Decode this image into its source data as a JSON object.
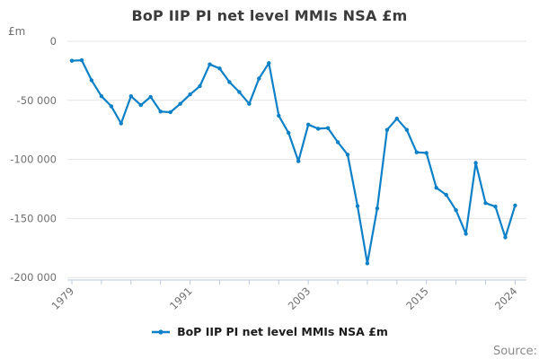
{
  "chart": {
    "title": "BoP IIP PI net level MMIs NSA £m",
    "unit_label": "£m",
    "legend_label": "BoP IIP PI net level MMIs NSA £m",
    "source_label": "Source:"
  },
  "chart_data": {
    "type": "line",
    "title": "BoP IIP PI net level MMIs NSA £m",
    "xlabel": "",
    "ylabel": "£m",
    "series_name": "BoP IIP PI net level MMIs NSA £m",
    "legend_position": "bottom",
    "grid": "horizontal",
    "ylim": [
      -200000,
      0
    ],
    "x": [
      1979,
      1980,
      1981,
      1982,
      1983,
      1984,
      1985,
      1986,
      1987,
      1988,
      1989,
      1990,
      1991,
      1992,
      1993,
      1994,
      1995,
      1996,
      1997,
      1998,
      1999,
      2000,
      2001,
      2002,
      2003,
      2004,
      2005,
      2006,
      2007,
      2008,
      2009,
      2010,
      2011,
      2012,
      2013,
      2014,
      2015,
      2016,
      2017,
      2018,
      2019,
      2020,
      2021,
      2022,
      2023,
      2024
    ],
    "values": [
      -16500,
      -16000,
      -33000,
      -46500,
      -55000,
      -69500,
      -46500,
      -54000,
      -47000,
      -59500,
      -60000,
      -53000,
      -45000,
      -38000,
      -19500,
      -23000,
      -34500,
      -43000,
      -53000,
      -31500,
      -18500,
      -63000,
      -77500,
      -101500,
      -70500,
      -74000,
      -73500,
      -85500,
      -96000,
      -139500,
      -188000,
      -141500,
      -75000,
      -65500,
      -75000,
      -94000,
      -94500,
      -124000,
      -130000,
      -143000,
      -163000,
      -103000,
      -137000,
      -140000,
      -166000,
      -139000
    ],
    "y_ticks": [
      {
        "value": 0,
        "label": "0"
      },
      {
        "value": -50000,
        "label": "-50 000"
      },
      {
        "value": -100000,
        "label": "-100 000"
      },
      {
        "value": -150000,
        "label": "-150 000"
      },
      {
        "value": -200000,
        "label": "-200 000"
      }
    ],
    "x_tick_years": [
      1979,
      1982,
      1985,
      1988,
      1991,
      1994,
      1997,
      2000,
      2003,
      2006,
      2009,
      2012,
      2015,
      2018,
      2021,
      2024
    ],
    "x_labeled_ticks": [
      1979,
      1991,
      2003,
      2015,
      2024
    ],
    "colors": {
      "line": "#0d80c7",
      "gridline": "#e4e4e4",
      "axis": "#bccadb",
      "tick_label": "#6f6f6f",
      "title": "#3b3b3b"
    }
  }
}
